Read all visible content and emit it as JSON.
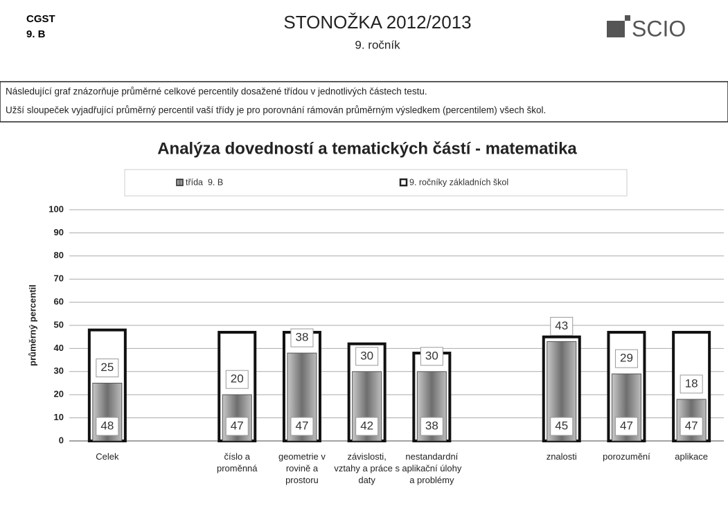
{
  "header": {
    "school": "CGST",
    "class": "9. B",
    "title": "STONOŽKA 2012/2013",
    "subtitle": "9. ročník",
    "logo": "SCIO"
  },
  "note": [
    "Následující graf znázorňuje průměrné celkové percentily dosažené třídou v jednotlivých částech testu.",
    "Užší sloupeček vyjadřující průměrný percentil vaší třídy je pro porovnání rámován průměrným výsledkem (percentilem) všech škol."
  ],
  "chart_data": {
    "type": "bar",
    "title": "Analýza dovedností a tematických částí - matematika",
    "ylabel": "průměrný percentil",
    "categories": [
      "Celek",
      null,
      "číslo a proměnná",
      "geometrie v rovině a prostoru",
      "závislosti, vztahy a práce s daty",
      "nestandardní aplikační úlohy a problémy",
      null,
      "znalosti",
      "porozumění",
      "aplikace"
    ],
    "series": [
      {
        "name": "třída  9. B",
        "color": "#8c8c8c",
        "values": [
          25,
          null,
          20,
          38,
          30,
          30,
          null,
          43,
          29,
          18
        ]
      },
      {
        "name": "9. ročníky základních škol",
        "color": "#ffffff",
        "values": [
          48,
          null,
          47,
          47,
          42,
          38,
          null,
          45,
          47,
          47
        ]
      }
    ],
    "ylim": [
      0,
      100
    ],
    "yticks": [
      0,
      10,
      20,
      30,
      40,
      50,
      60,
      70,
      80,
      90,
      100
    ],
    "grid": true
  }
}
